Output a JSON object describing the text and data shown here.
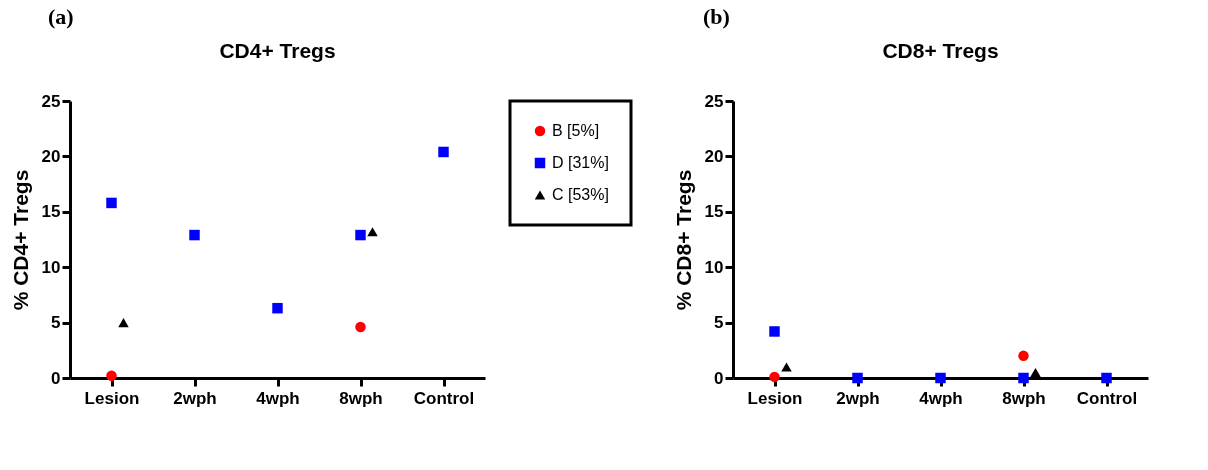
{
  "chart_data": [
    {
      "type": "scatter",
      "title": "CD4+ Tregs",
      "ylabel": "% CD4+ Tregs",
      "annotations": [
        "(a)"
      ],
      "categories": [
        "Lesion",
        "2wph",
        "4wph",
        "8wph",
        "Control"
      ],
      "ylim": [
        0,
        25
      ],
      "yticks": [
        0,
        5,
        10,
        15,
        20,
        25
      ],
      "grid": false,
      "legend": "right",
      "series": [
        {
          "name": "B [5%]",
          "color": "#ff0000",
          "marker": "circle",
          "values": [
            0.2,
            null,
            null,
            4.6,
            null
          ]
        },
        {
          "name": "D [31%]",
          "color": "#0000ff",
          "marker": "square",
          "values": [
            15.8,
            12.9,
            6.3,
            12.9,
            20.4
          ]
        },
        {
          "name": "C [53%]",
          "color": "#000000",
          "marker": "triangle",
          "values": [
            5.0,
            null,
            null,
            13.2,
            null
          ]
        }
      ]
    },
    {
      "type": "scatter",
      "title": "CD8+ Tregs",
      "ylabel": "% CD8+  Tregs",
      "annotations": [
        "(b)"
      ],
      "categories": [
        "Lesion",
        "2wph",
        "4wph",
        "8wph",
        "Control"
      ],
      "ylim": [
        0,
        25
      ],
      "yticks": [
        0,
        5,
        10,
        15,
        20,
        25
      ],
      "grid": false,
      "series": [
        {
          "color": "#ff0000",
          "marker": "circle",
          "values": [
            0.1,
            null,
            null,
            2.0,
            null
          ]
        },
        {
          "color": "#0000ff",
          "marker": "square",
          "values": [
            4.2,
            0,
            0,
            0,
            0
          ]
        },
        {
          "color": "#000000",
          "marker": "triangle",
          "values": [
            1.0,
            null,
            null,
            0.5,
            null
          ]
        }
      ]
    }
  ]
}
